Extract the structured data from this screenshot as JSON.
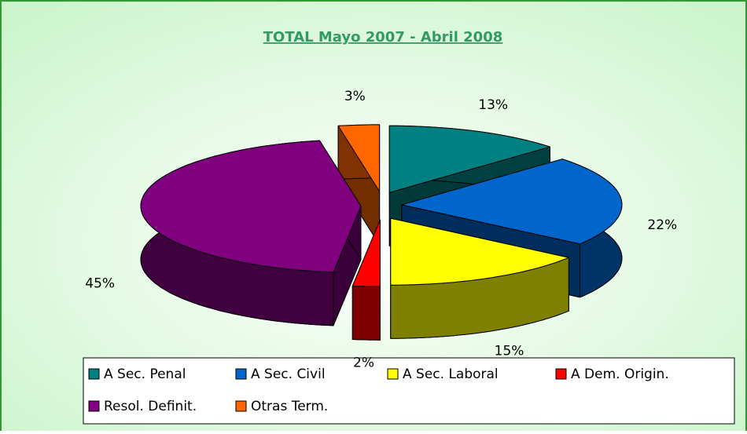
{
  "chart_data": {
    "type": "pie3d",
    "title": "TOTAL Mayo 2007 - Abril 2008",
    "categories": [
      "A Sec. Penal",
      "A Sec. Civil",
      "A Sec. Laboral",
      "A Dem. Origin.",
      "Resol. Definit.",
      "Otras Term."
    ],
    "values": [
      13,
      22,
      15,
      2,
      45,
      3
    ],
    "value_labels": [
      "13%",
      "22%",
      "15%",
      "2%",
      "45%",
      "3%"
    ],
    "colors": [
      "#008080",
      "#0066cc",
      "#ffff00",
      "#ff0000",
      "#800080",
      "#ff6600"
    ],
    "legend": "bottom"
  }
}
